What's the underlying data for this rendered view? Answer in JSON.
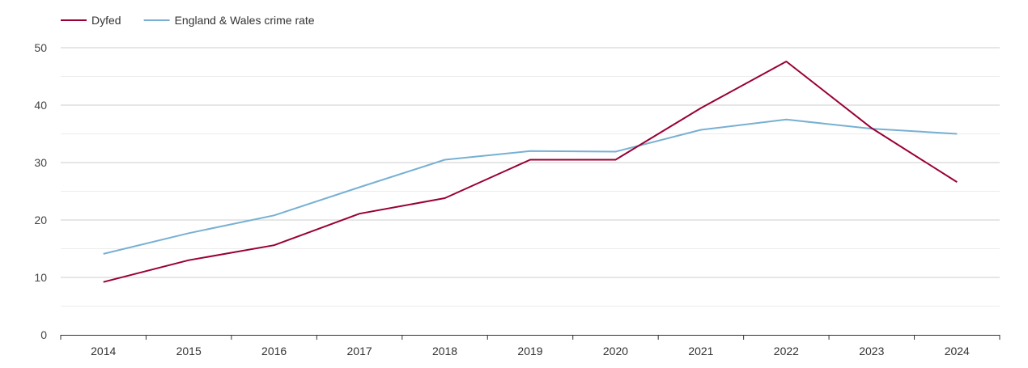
{
  "chart_data": {
    "type": "line",
    "title": "",
    "xlabel": "",
    "ylabel": "",
    "x": [
      2014,
      2015,
      2016,
      2017,
      2018,
      2019,
      2020,
      2021,
      2022,
      2023,
      2024
    ],
    "x_tick_labels": [
      "2014",
      "2015",
      "2016",
      "2017",
      "2018",
      "2019",
      "2020",
      "2021",
      "2022",
      "2023",
      "2024"
    ],
    "ylim": [
      0,
      50
    ],
    "y_ticks": [
      0,
      10,
      20,
      30,
      40,
      50
    ],
    "y_tick_labels": [
      "0",
      "10",
      "20",
      "30",
      "40",
      "50"
    ],
    "grid": true,
    "legend_position": "top-left",
    "series": [
      {
        "name": "Dyfed",
        "color": "#990033",
        "values": [
          9.2,
          13.0,
          15.6,
          21.1,
          23.8,
          30.5,
          30.5,
          39.5,
          47.6,
          36.0,
          26.6
        ]
      },
      {
        "name": "England & Wales crime rate",
        "color": "#77b0d3",
        "values": [
          14.1,
          17.7,
          20.8,
          25.7,
          30.5,
          32.0,
          31.9,
          35.7,
          37.5,
          35.9,
          35.0
        ]
      }
    ]
  }
}
